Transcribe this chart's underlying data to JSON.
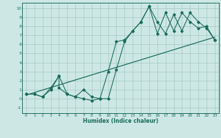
{
  "xlabel": "Humidex (Indice chaleur)",
  "bg_color": "#cde8e4",
  "grid_color": "#aaccc8",
  "line_color": "#1a6b5a",
  "xlim": [
    -0.5,
    23.5
  ],
  "ylim": [
    -1.6,
    10.6
  ],
  "xticks": [
    0,
    1,
    2,
    3,
    4,
    5,
    6,
    7,
    8,
    9,
    10,
    11,
    12,
    13,
    14,
    15,
    16,
    17,
    18,
    19,
    20,
    21,
    22,
    23
  ],
  "yticks": [
    -1,
    0,
    1,
    2,
    3,
    4,
    5,
    6,
    7,
    8,
    9,
    10
  ],
  "line1_x": [
    0,
    1,
    2,
    3,
    4,
    4,
    5,
    6,
    7,
    8,
    9,
    10,
    11,
    12,
    13,
    14,
    15,
    16,
    17,
    18,
    19,
    20,
    21,
    22,
    23
  ],
  "line1_y": [
    0.5,
    0.5,
    0.2,
    1.0,
    2.5,
    1.2,
    0.5,
    0.2,
    1.0,
    0.2,
    0.0,
    3.0,
    6.3,
    6.5,
    7.5,
    8.5,
    10.2,
    7.2,
    9.5,
    7.5,
    9.5,
    8.5,
    7.8,
    8.0,
    6.5
  ],
  "line2_x": [
    0,
    1,
    2,
    3,
    4,
    5,
    6,
    7,
    8,
    9,
    10,
    11,
    12,
    13,
    14,
    15,
    16,
    17,
    18,
    19,
    20,
    21,
    22,
    23
  ],
  "line2_y": [
    0.5,
    0.5,
    0.2,
    1.2,
    2.5,
    0.5,
    0.2,
    0.0,
    -0.2,
    0.0,
    0.0,
    3.2,
    6.3,
    7.5,
    8.5,
    10.2,
    8.5,
    7.2,
    9.3,
    7.5,
    9.5,
    8.5,
    7.8,
    6.5
  ],
  "trend_x": [
    0,
    23
  ],
  "trend_y": [
    0.4,
    6.8
  ]
}
